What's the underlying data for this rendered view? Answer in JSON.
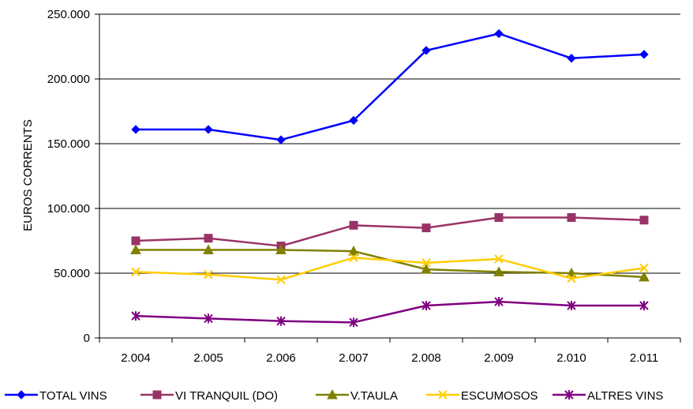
{
  "chart_data": {
    "type": "line",
    "title": "",
    "xlabel": "",
    "ylabel": "EUROS CORRENTS",
    "categories": [
      "2.004",
      "2.005",
      "2.006",
      "2.007",
      "2.008",
      "2.009",
      "2.010",
      "2.011"
    ],
    "y_ticks": [
      "0",
      "50.000",
      "100.000",
      "150.000",
      "200.000",
      "250.000"
    ],
    "ylim": [
      0,
      250000
    ],
    "grid": "horizontal",
    "legend_position": "bottom",
    "series": [
      {
        "name": "TOTAL VINS",
        "color": "#0000FF",
        "marker": "diamond",
        "values": [
          161000,
          161000,
          153000,
          168000,
          222000,
          235000,
          216000,
          219000
        ]
      },
      {
        "name": "VI TRANQUIL (DO)",
        "color": "#993366",
        "marker": "square",
        "values": [
          75000,
          77000,
          71000,
          87000,
          85000,
          93000,
          93000,
          91000
        ]
      },
      {
        "name": "V.TAULA",
        "color": "#808000",
        "marker": "triangle",
        "values": [
          68000,
          68000,
          68000,
          67000,
          53000,
          51000,
          50000,
          47000
        ]
      },
      {
        "name": "ESCUMOSOS",
        "color": "#FFCC00",
        "marker": "x",
        "values": [
          51000,
          49000,
          45000,
          62000,
          58000,
          61000,
          46000,
          54000
        ]
      },
      {
        "name": "ALTRES VINS",
        "color": "#800080",
        "marker": "star",
        "values": [
          17000,
          15000,
          13000,
          12000,
          25000,
          28000,
          25000,
          25000
        ]
      }
    ]
  }
}
